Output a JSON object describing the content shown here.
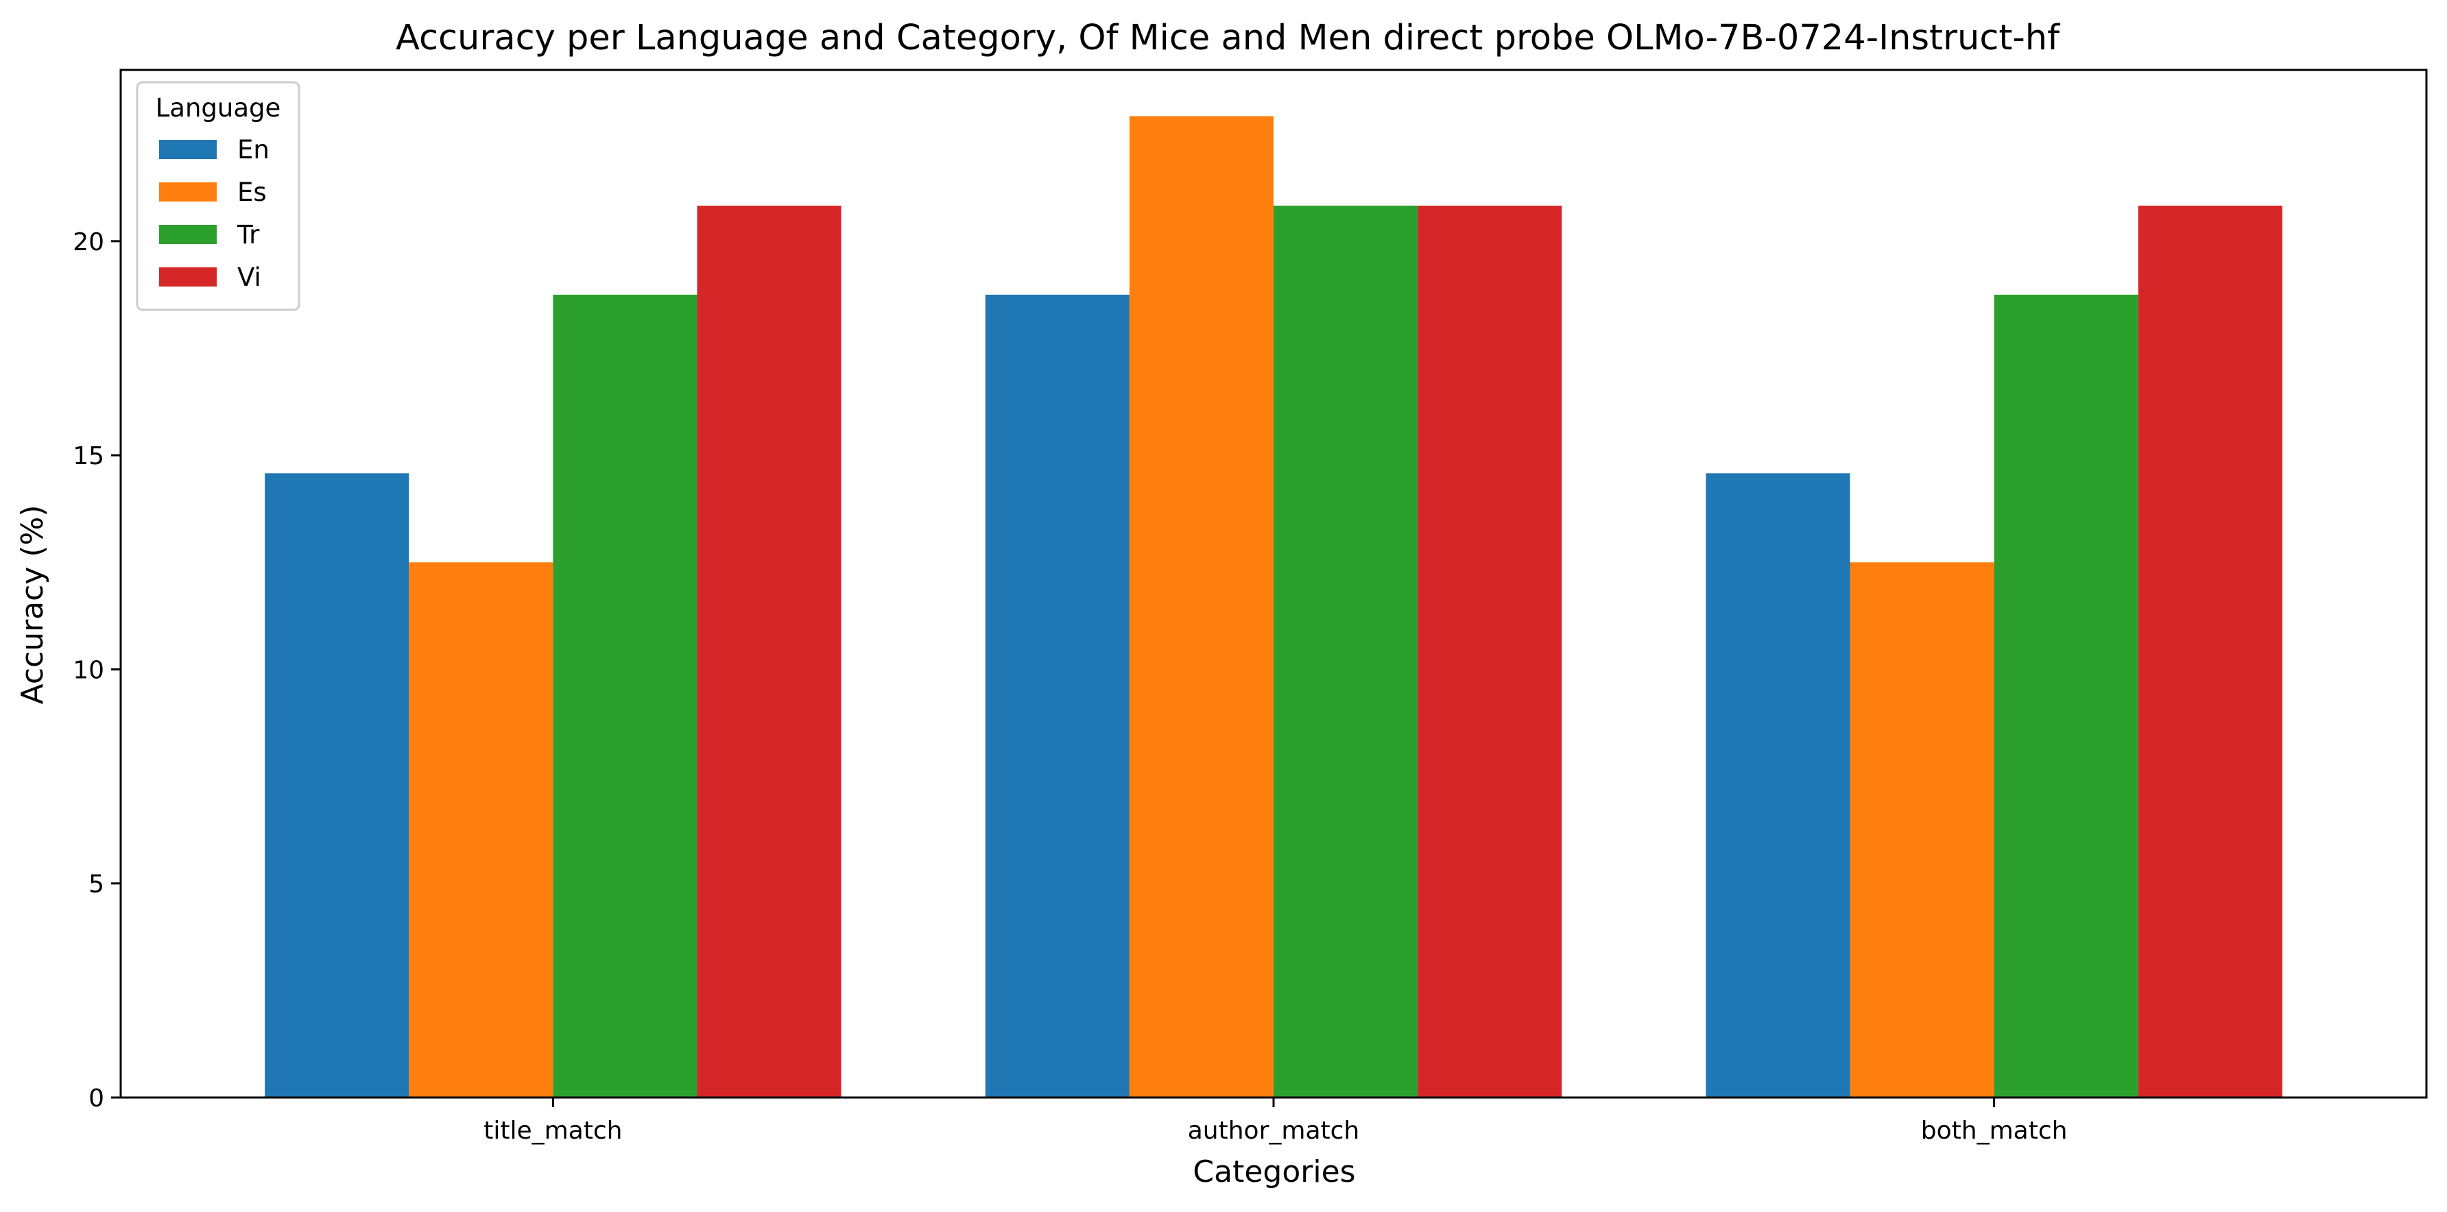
{
  "chart_data": {
    "type": "bar",
    "title": "Accuracy per Language and Category, Of Mice and Men direct probe OLMo-7B-0724-Instruct-hf",
    "xlabel": "Categories",
    "ylabel": "Accuracy (%)",
    "categories": [
      "title_match",
      "author_match",
      "both_match"
    ],
    "ylim": [
      0,
      24
    ],
    "yticks": [
      0,
      5,
      10,
      15,
      20
    ],
    "legend": {
      "title": "Language",
      "placement": "top-left"
    },
    "grid": false,
    "series": [
      {
        "name": "En",
        "color": "#1f77b4",
        "values": [
          14.58,
          18.75,
          14.58
        ]
      },
      {
        "name": "Es",
        "color": "#ff7f0e",
        "values": [
          12.5,
          22.92,
          12.5
        ]
      },
      {
        "name": "Tr",
        "color": "#2ca02c",
        "values": [
          18.75,
          20.83,
          18.75
        ]
      },
      {
        "name": "Vi",
        "color": "#d62728",
        "values": [
          20.83,
          20.83,
          20.83
        ]
      }
    ]
  }
}
